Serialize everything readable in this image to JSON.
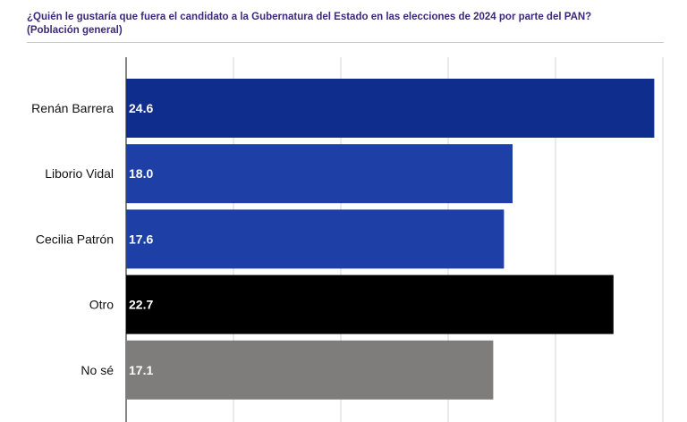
{
  "chart_data": {
    "type": "bar",
    "orientation": "horizontal",
    "title": "¿Quién le gustaría que fuera el candidato a la Gubernatura del Estado en las elecciones de 2024 por parte del PAN?",
    "subtitle": "(Población general)",
    "categories": [
      "Renán Barrera",
      "Liborio Vidal",
      "Cecilia Patrón",
      "Otro",
      "No sé"
    ],
    "values": [
      24.6,
      18.0,
      17.6,
      22.7,
      17.1
    ],
    "value_labels": [
      "24.6",
      "18.0",
      "17.6",
      "22.7",
      "17.1"
    ],
    "colors": [
      "#0e2d8c",
      "#1d3fa6",
      "#1d3fa6",
      "#000000",
      "#7f7c7c"
    ],
    "xlim": [
      0,
      25
    ],
    "grid": true,
    "xlabel": "",
    "ylabel": ""
  }
}
